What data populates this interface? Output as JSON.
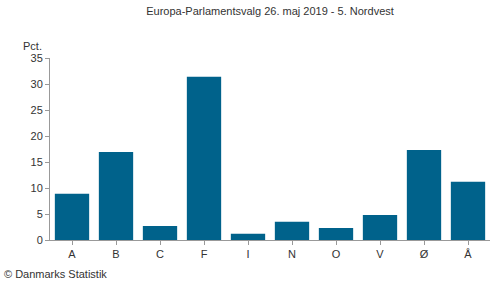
{
  "chart_data": {
    "type": "bar",
    "title": "Europa-Parlamentsvalg 26. maj 2019 - 5. Nordvest",
    "y_label": "Pct.",
    "annotations": [
      "© Danmarks Statistik"
    ],
    "categories": [
      "A",
      "B",
      "C",
      "F",
      "I",
      "N",
      "O",
      "V",
      "Ø",
      "Å"
    ],
    "values": [
      8.9,
      16.9,
      2.7,
      31.4,
      1.2,
      3.5,
      2.3,
      4.8,
      17.3,
      11.2
    ],
    "color": "#00628b",
    "ylim": [
      0,
      35
    ],
    "yticks": [
      0,
      5,
      10,
      15,
      20,
      25,
      30,
      35
    ],
    "grid": false
  }
}
